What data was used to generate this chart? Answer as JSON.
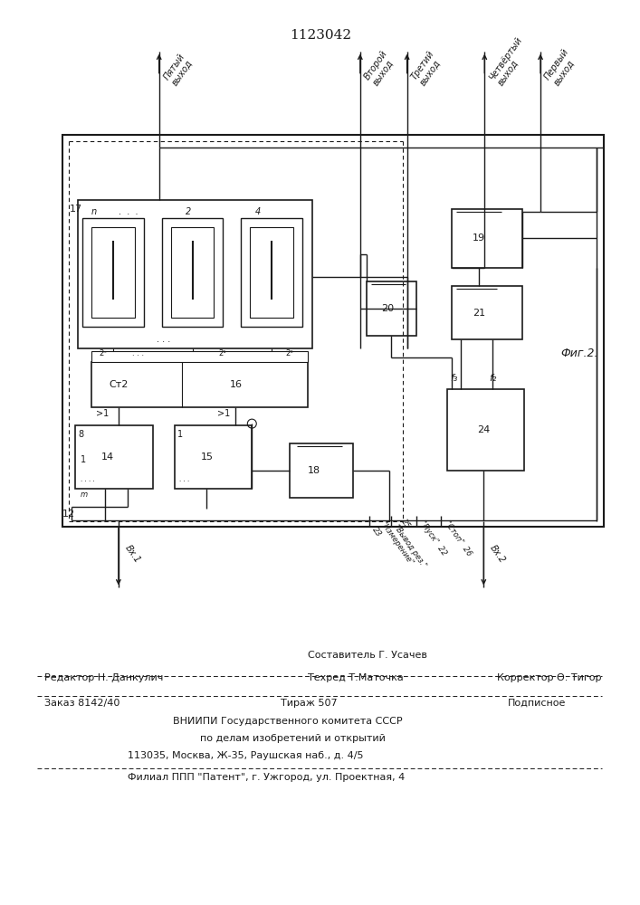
{
  "title": "1123042",
  "fig2_label": "Фиг.2.",
  "line_color": "#1a1a1a",
  "footer": {
    "comp_label": "Составитель Г. Усачев",
    "line1_left": "Редактор Н. Данкулич",
    "line1_center": "Техред Т.Маточка",
    "line1_right": "Корректор О. Тигор",
    "line2_left": "Заказ 8142/40",
    "line2_center": "Тираж 507",
    "line2_right": "Подписное",
    "line3": "ВНИИПИ Государственного комитета СССР",
    "line4": "по делам изобретений и открытий",
    "line5": "113035, Москва, Ж-35, Раушская наб., д. 4/5",
    "line6": "Филиал ППП \"Патент\", г. Ужгород, ул. Проектная, 4"
  }
}
